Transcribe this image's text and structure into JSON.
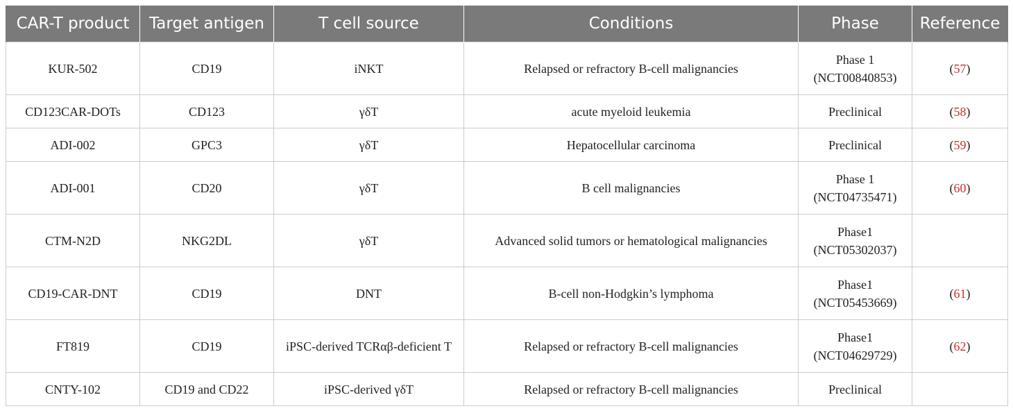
{
  "table": {
    "headers": [
      "CAR-T product",
      "Target antigen",
      "T cell source",
      "Conditions",
      "Phase",
      "Reference"
    ],
    "rows": [
      {
        "product": "KUR-502",
        "antigen": "CD19",
        "source": "iNKT",
        "conditions": "Relapsed or refractory B-cell malignancies",
        "phase": [
          "Phase 1",
          "(NCT00840853)"
        ],
        "ref": "57"
      },
      {
        "product": "CD123CAR-DOTs",
        "antigen": "CD123",
        "source": "γδT",
        "conditions": "acute myeloid leukemia",
        "phase": [
          "Preclinical"
        ],
        "ref": "58"
      },
      {
        "product": "ADI-002",
        "antigen": "GPC3",
        "source": "γδT",
        "conditions": "Hepatocellular carcinoma",
        "phase": [
          "Preclinical"
        ],
        "ref": "59"
      },
      {
        "product": "ADI-001",
        "antigen": "CD20",
        "source": "γδT",
        "conditions": "B cell malignancies",
        "phase": [
          "Phase 1",
          "(NCT04735471)"
        ],
        "ref": "60"
      },
      {
        "product": "CTM-N2D",
        "antigen": "NKG2DL",
        "source": "γδT",
        "conditions": "Advanced solid tumors or hematological malignancies",
        "phase": [
          "Phase1",
          "(NCT05302037)"
        ],
        "ref": ""
      },
      {
        "product": "CD19-CAR-DNT",
        "antigen": "CD19",
        "source": "DNT",
        "conditions": "B-cell non-Hodgkin’s lymphoma",
        "phase": [
          "Phase1",
          "(NCT05453669)"
        ],
        "ref": "61"
      },
      {
        "product": "FT819",
        "antigen": "CD19",
        "source": "iPSC-derived TCRαβ-deficient T",
        "conditions": "Relapsed or refractory B-cell malignancies",
        "phase": [
          "Phase1",
          "(NCT04629729)"
        ],
        "ref": "62"
      },
      {
        "product": "CNTY-102",
        "antigen": "CD19 and CD22",
        "source": "iPSC-derived γδT",
        "conditions": "Relapsed or refractory B-cell malignancies",
        "phase": [
          "Preclinical"
        ],
        "ref": ""
      }
    ]
  },
  "colors": {
    "header_bg": "#7a7a7a",
    "reference_link": "#d42a2a"
  }
}
